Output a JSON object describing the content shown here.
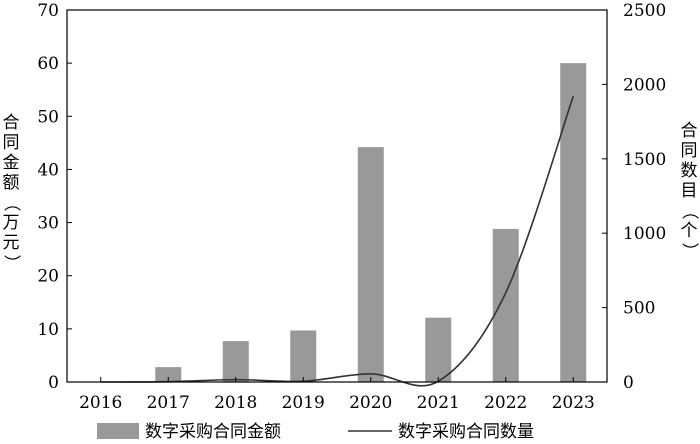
{
  "chart_data": {
    "type": "bar",
    "categories": [
      "2016",
      "2017",
      "2018",
      "2019",
      "2020",
      "2021",
      "2022",
      "2023"
    ],
    "series": [
      {
        "name": "数字采购合同金额",
        "type": "bar",
        "axis": "left",
        "color": "#999999",
        "values": [
          0,
          2.8,
          7.7,
          9.7,
          44.2,
          12.1,
          28.8,
          60.0
        ]
      },
      {
        "name": "数字采购合同数量",
        "type": "line",
        "axis": "right",
        "color": "#333333",
        "values": [
          0,
          2,
          16,
          5,
          55,
          5,
          600,
          1920
        ]
      }
    ],
    "ylabel_left": "合同金额（万元）",
    "ylabel_right": "合同数目（个）",
    "ylim_left": [
      0,
      70
    ],
    "ylim_right": [
      0,
      2500
    ],
    "yticks_left": [
      "0",
      "10",
      "20",
      "30",
      "40",
      "50",
      "60",
      "70"
    ],
    "yticks_right": [
      "0",
      "500",
      "1000",
      "1500",
      "2000",
      "2500"
    ],
    "grid": false,
    "legend_position": "bottom"
  }
}
